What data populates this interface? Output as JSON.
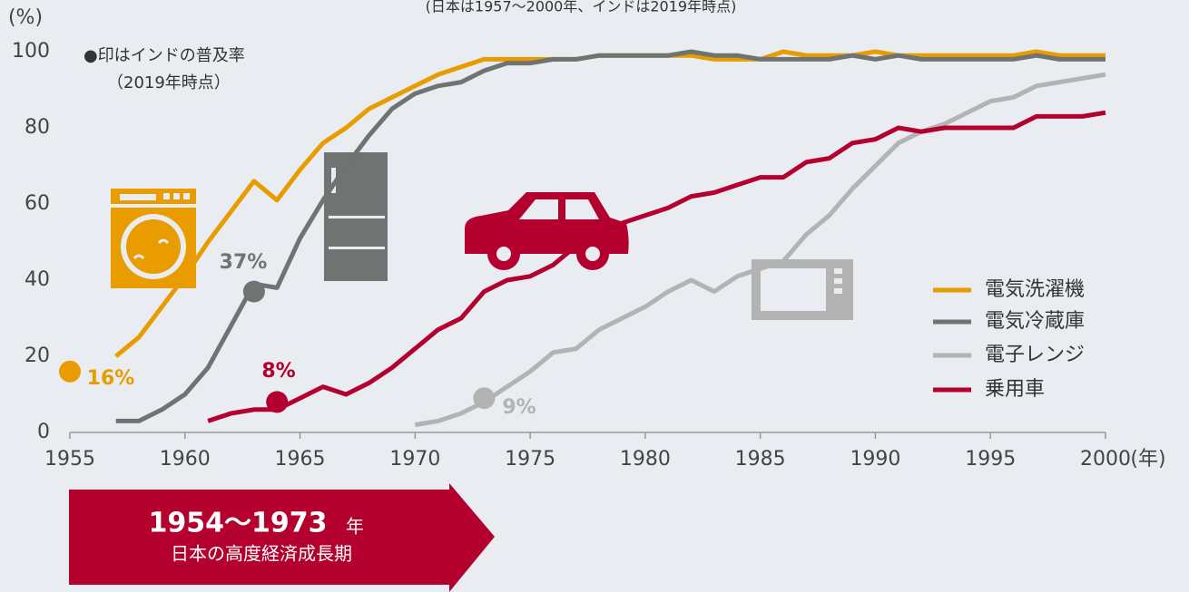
{
  "chart_data": {
    "type": "line",
    "subtitle": "(日本は1957～2000年、インドは2019年時点)",
    "y_axis_label": "(%)",
    "x_axis_label": "(年)",
    "note": [
      "●印はインドの普及率",
      "（2019年時点）"
    ],
    "period": {
      "years": "1954～1973",
      "unit": "年",
      "label": "日本の高度経済成長期"
    },
    "x": [
      1955,
      1956,
      1957,
      1958,
      1959,
      1960,
      1961,
      1962,
      1963,
      1964,
      1965,
      1966,
      1967,
      1968,
      1969,
      1970,
      1971,
      1972,
      1973,
      1974,
      1975,
      1976,
      1977,
      1978,
      1979,
      1980,
      1981,
      1982,
      1983,
      1984,
      1985,
      1986,
      1987,
      1988,
      1989,
      1990,
      1991,
      1992,
      1993,
      1994,
      1995,
      1996,
      1997,
      1998,
      1999,
      2000
    ],
    "xlim": [
      1955,
      2000
    ],
    "xticks": [
      1955,
      1960,
      1965,
      1970,
      1975,
      1980,
      1985,
      1990,
      1995,
      2000
    ],
    "ylim": [
      0,
      100
    ],
    "yticks": [
      0,
      20,
      40,
      60,
      80,
      100
    ],
    "grid": false,
    "legend": "right",
    "series": [
      {
        "name": "電気洗濯機",
        "color": "#e89c00",
        "values": [
          null,
          null,
          20,
          25,
          33,
          41,
          50,
          58,
          66,
          61,
          69,
          76,
          80,
          85,
          88,
          91,
          94,
          96,
          98,
          98,
          98,
          98,
          98,
          99,
          99,
          99,
          99,
          99,
          98,
          98,
          98,
          100,
          99,
          99,
          99,
          100,
          99,
          99,
          99,
          99,
          99,
          99,
          100,
          99,
          99,
          99
        ],
        "india_x": 1955,
        "india_value": 16,
        "india_label": "16%"
      },
      {
        "name": "電気冷蔵庫",
        "color": "#6f7372",
        "values": [
          null,
          null,
          3,
          3,
          6,
          10,
          17,
          28,
          39,
          38,
          51,
          61,
          70,
          78,
          85,
          89,
          91,
          92,
          95,
          97,
          97,
          98,
          98,
          99,
          99,
          99,
          99,
          100,
          99,
          99,
          98,
          98,
          98,
          98,
          99,
          98,
          99,
          98,
          98,
          98,
          98,
          98,
          99,
          98,
          98,
          98
        ],
        "india_x": 1963,
        "india_value": 37,
        "india_label": "37%"
      },
      {
        "name": "電子レンジ",
        "color": "#b3b3b3",
        "values": [
          null,
          null,
          null,
          null,
          null,
          null,
          null,
          null,
          null,
          null,
          null,
          null,
          null,
          null,
          null,
          2,
          3,
          5,
          8,
          12,
          16,
          21,
          22,
          27,
          30,
          33,
          37,
          40,
          37,
          41,
          43,
          45,
          52,
          57,
          64,
          70,
          76,
          79,
          81,
          84,
          87,
          88,
          91,
          92,
          93,
          94
        ],
        "india_x": 1973,
        "india_value": 9,
        "india_label": "9%"
      },
      {
        "name": "乗用車",
        "color": "#b4002e",
        "values": [
          null,
          null,
          null,
          null,
          null,
          null,
          3,
          5,
          6,
          6,
          9,
          12,
          10,
          13,
          17,
          22,
          27,
          30,
          37,
          40,
          41,
          44,
          49,
          52,
          55,
          57,
          59,
          62,
          63,
          65,
          67,
          67,
          71,
          72,
          76,
          77,
          80,
          79,
          80,
          80,
          80,
          80,
          83,
          83,
          83,
          84
        ],
        "india_x": 1964,
        "india_value": 8,
        "india_label": "8%"
      }
    ]
  }
}
